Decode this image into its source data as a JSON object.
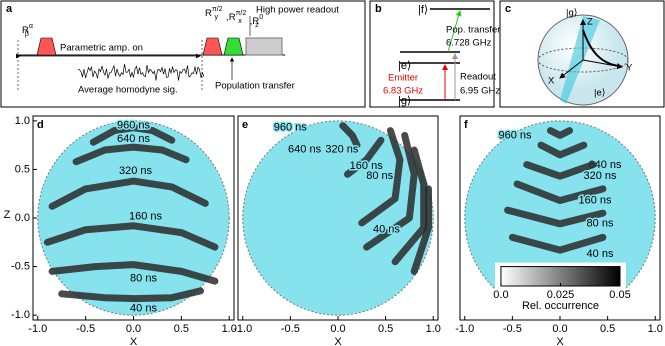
{
  "diagram_a": {
    "label": "a",
    "first_pulse": {
      "base": "R",
      "sub": "β",
      "sup": "α"
    },
    "second_pulses": [
      {
        "base": "R",
        "sub": "y",
        "sup": "π/2"
      },
      {
        "base": "R",
        "sub": "x",
        "sup": "π/2"
      },
      {
        "base": "R",
        "sub": "z",
        "sup": "0"
      }
    ],
    "readout": "High power readout",
    "amp": "Parametric amp. on",
    "homodyne": "Average homodyne sig.",
    "transfer": "Population transfer"
  },
  "diagram_b": {
    "label": "b",
    "level_f": "|f⟩",
    "level_e": "|e⟩",
    "level_g": "|g⟩",
    "transfer": "Pop. transfer",
    "transfer_freq": "6.728 GHz",
    "emitter": "Emitter",
    "emitter_freq": "6.83 GHz",
    "readout": "Readout",
    "readout_freq": "6.95 GHz"
  },
  "diagram_c": {
    "label": "c",
    "top": "|g⟩",
    "z": "Z",
    "x": "X",
    "y": "Y",
    "bottom": "|e⟩"
  },
  "chart_data": [
    {
      "type": "trajectory",
      "panel_label": "d",
      "xlabel": "X",
      "ylabel": "Z",
      "color": "#2a2a2a",
      "disk_color": "#86e3ee",
      "xlim": [
        -1.05,
        1.05
      ],
      "ylim": [
        -1.05,
        1.05
      ],
      "xticks": [
        {
          "value": -1,
          "label": "-1.0"
        },
        -0.5,
        {
          "value": 0,
          "label": "0.0"
        },
        0.5,
        {
          "value": 1,
          "label": "1.0"
        }
      ],
      "yticks": [
        {
          "value": -1,
          "label": "-1.0"
        },
        -0.5,
        {
          "value": 0,
          "label": "0.0"
        },
        0.5,
        {
          "value": 1,
          "label": "1.0"
        }
      ],
      "series": [
        {
          "name": "960 ns",
          "x": [
            -0.42,
            -0.2,
            0,
            0.2,
            0.4
          ],
          "y": [
            0.78,
            0.9,
            0.93,
            0.9,
            0.8
          ]
        },
        {
          "name": "640 ns",
          "x": [
            -0.6,
            -0.3,
            0,
            0.3,
            0.55
          ],
          "y": [
            0.58,
            0.7,
            0.73,
            0.7,
            0.6
          ]
        },
        {
          "name": "320 ns",
          "x": [
            -0.85,
            -0.5,
            0,
            0.4,
            0.75
          ],
          "y": [
            0.12,
            0.3,
            0.38,
            0.32,
            0.15
          ]
        },
        {
          "name": "160 ns",
          "x": [
            -0.9,
            -0.5,
            0,
            0.5,
            0.85
          ],
          "y": [
            -0.25,
            -0.12,
            -0.08,
            -0.15,
            -0.3
          ]
        },
        {
          "name": "80 ns",
          "x": [
            -0.85,
            -0.4,
            0,
            0.5,
            0.85
          ],
          "y": [
            -0.55,
            -0.5,
            -0.48,
            -0.55,
            -0.65
          ]
        },
        {
          "name": "40 ns",
          "x": [
            -0.75,
            -0.3,
            0,
            0.4,
            0.7
          ],
          "y": [
            -0.78,
            -0.82,
            -0.83,
            -0.82,
            -0.75
          ]
        }
      ]
    },
    {
      "type": "trajectory",
      "panel_label": "e",
      "xlabel": "X",
      "color": "#2a2a2a",
      "disk_color": "#86e3ee",
      "xlim": [
        -1.05,
        1.05
      ],
      "ylim": [
        -1.05,
        1.05
      ],
      "xticks": [
        {
          "value": -1,
          "label": "-1.0"
        },
        -0.5,
        {
          "value": 0,
          "label": "0.0"
        },
        0.5,
        {
          "value": 1,
          "label": "1.0"
        }
      ],
      "series": [
        {
          "name": "960 ns",
          "x": [
            0.05,
            0.15,
            0.2
          ],
          "y": [
            0.95,
            0.85,
            0.75
          ]
        },
        {
          "name": "640 ns",
          "x": [
            0.1,
            0.3,
            0.45
          ],
          "y": [
            0.45,
            0.6,
            0.8
          ]
        },
        {
          "name": "320 ns",
          "x": [
            0.25,
            0.6,
            0.65,
            0.55
          ],
          "y": [
            -0.05,
            0.2,
            0.6,
            0.9
          ]
        },
        {
          "name": "160 ns",
          "x": [
            0.3,
            0.75,
            0.8,
            0.7
          ],
          "y": [
            -0.3,
            0,
            0.45,
            0.85
          ]
        },
        {
          "name": "80 ns",
          "x": [
            0.6,
            0.9,
            0.9,
            0.8
          ],
          "y": [
            -0.45,
            -0.1,
            0.35,
            0.7
          ]
        },
        {
          "name": "40 ns",
          "x": [
            0.8,
            0.95,
            0.95
          ],
          "y": [
            -0.55,
            -0.1,
            0.3
          ]
        }
      ]
    },
    {
      "type": "trajectory",
      "panel_label": "f",
      "xlabel": "X",
      "color": "#2a2a2a",
      "disk_color": "#86e3ee",
      "xlim": [
        -1.05,
        1.05
      ],
      "ylim": [
        -1.05,
        1.05
      ],
      "xticks": [
        {
          "value": -1,
          "label": "-1.0"
        },
        -0.5,
        {
          "value": 0,
          "label": "0.0"
        },
        0.5,
        {
          "value": 1,
          "label": "1.0"
        }
      ],
      "series": [
        {
          "name": "960 ns",
          "x": [
            -0.1,
            0,
            0.1
          ],
          "y": [
            0.9,
            0.85,
            0.9
          ]
        },
        {
          "name": "640 ns",
          "x": [
            -0.2,
            0,
            0.25
          ],
          "y": [
            0.75,
            0.65,
            0.75
          ]
        },
        {
          "name": "320 ns",
          "x": [
            -0.35,
            0,
            0.35
          ],
          "y": [
            0.55,
            0.43,
            0.55
          ]
        },
        {
          "name": "160 ns",
          "x": [
            -0.45,
            0,
            0.45
          ],
          "y": [
            0.35,
            0.18,
            0.3
          ]
        },
        {
          "name": "80 ns",
          "x": [
            -0.55,
            0,
            0.45
          ],
          "y": [
            0.08,
            -0.06,
            0.05
          ]
        },
        {
          "name": "40 ns",
          "x": [
            -0.5,
            0,
            0.45
          ],
          "y": [
            -0.2,
            -0.33,
            -0.2
          ]
        }
      ],
      "colorbar": {
        "lim": [
          0,
          0.05
        ],
        "ticks": [
          {
            "value": 0,
            "label": "0.0"
          },
          0.025,
          0.05
        ],
        "label": "Rel. occurrence"
      }
    }
  ]
}
